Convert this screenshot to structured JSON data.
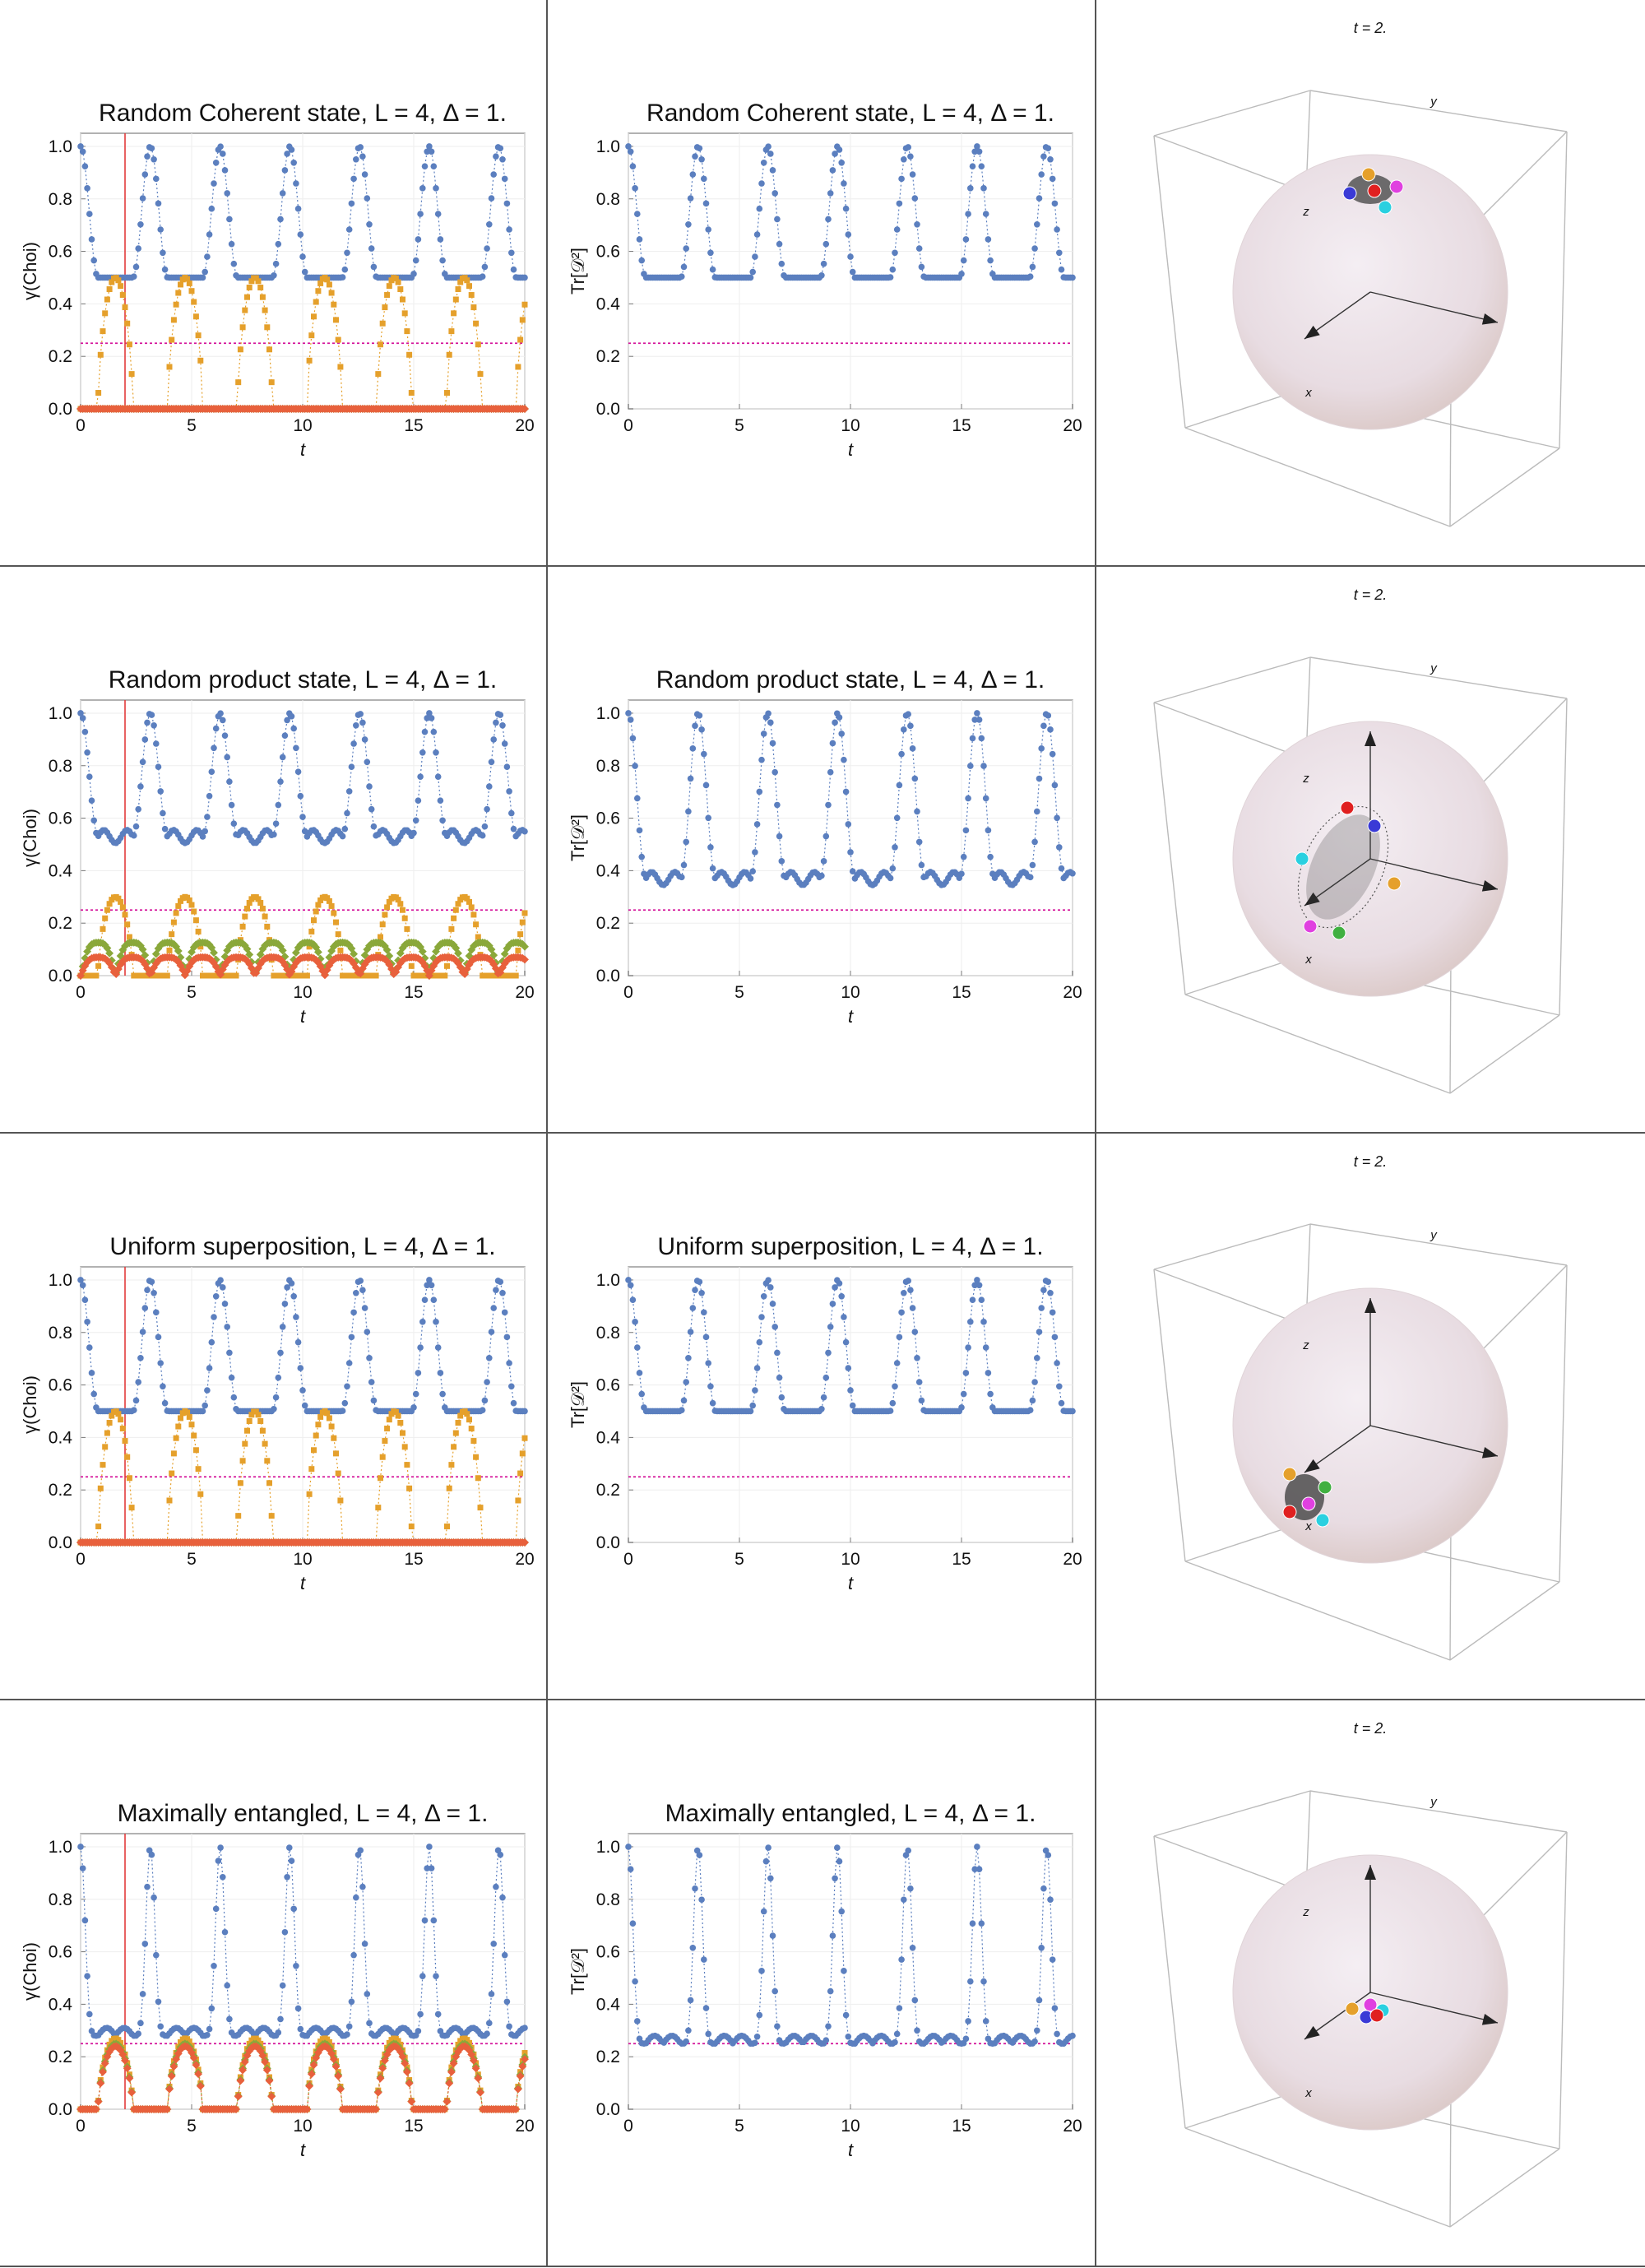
{
  "colors": {
    "blue": "#5b7fbf",
    "orange": "#e5a02b",
    "green": "#8aa83a",
    "red": "#e8603c",
    "magenta": "#d4149b",
    "redline": "#e23b3b"
  },
  "bloch": {
    "time_label": "t = 2.",
    "axis_labels": {
      "x": "x",
      "y": "y",
      "z": "z"
    }
  },
  "rows": [
    {
      "title": "Random Coherent state, L = 4, Δ = 1.",
      "left_ylabel": "γ(Choi)",
      "right_ylabel": "Tr[𝒟²]",
      "xlabel": "t",
      "yticks": [
        "0.0",
        "0.2",
        "0.4",
        "0.6",
        "0.8",
        "1.0"
      ],
      "xticks": [
        "0",
        "5",
        "10",
        "15",
        "20"
      ],
      "bloch_shape": "coherent-top"
    },
    {
      "title": "Random product state, L = 4, Δ = 1.",
      "left_ylabel": "γ(Choi)",
      "right_ylabel": "Tr[𝒟²]",
      "xlabel": "t",
      "yticks": [
        "0.0",
        "0.2",
        "0.4",
        "0.6",
        "0.8",
        "1.0"
      ],
      "xticks": [
        "0",
        "5",
        "10",
        "15",
        "20"
      ],
      "bloch_shape": "product-ellipsoid"
    },
    {
      "title": "Uniform superposition, L = 4, Δ = 1.",
      "left_ylabel": "γ(Choi)",
      "right_ylabel": "Tr[𝒟²]",
      "xlabel": "t",
      "yticks": [
        "0.0",
        "0.2",
        "0.4",
        "0.6",
        "0.8",
        "1.0"
      ],
      "xticks": [
        "0",
        "5",
        "10",
        "15",
        "20"
      ],
      "bloch_shape": "uniform-side"
    },
    {
      "title": "Maximally entangled, L = 4, Δ = 1.",
      "left_ylabel": "γ(Choi)",
      "right_ylabel": "Tr[𝒟²]",
      "xlabel": "t",
      "yticks": [
        "0.0",
        "0.2",
        "0.4",
        "0.6",
        "0.8",
        "1.0"
      ],
      "xticks": [
        "0",
        "5",
        "10",
        "15",
        "20"
      ],
      "bloch_shape": "center"
    }
  ],
  "chart_data": [
    {
      "type": "scatter",
      "title": "Random Coherent state, L = 4, Δ = 1.",
      "xlabel": "t",
      "ylabel": "γ(Choi)",
      "xlim": [
        0,
        20
      ],
      "ylim": [
        0,
        1.05
      ],
      "period": 3.14,
      "series": [
        {
          "color": "#5b7fbf",
          "min": 0.5,
          "max": 1.0,
          "shape": "plateau"
        },
        {
          "color": "#e5a02b",
          "min": 0.0,
          "max": 0.5,
          "shape": "arch"
        },
        {
          "color": "#8aa83a",
          "min": 0.0,
          "max": 0.0,
          "shape": "flat"
        },
        {
          "color": "#e8603c",
          "min": 0.0,
          "max": 0.0,
          "shape": "flat"
        }
      ],
      "hline": 0.25,
      "vline": 2
    },
    {
      "type": "scatter",
      "title": "Random Coherent state, L = 4, Δ = 1.",
      "xlabel": "t",
      "ylabel": "Tr[𝒟²]",
      "xlim": [
        0,
        20
      ],
      "ylim": [
        0,
        1.05
      ],
      "period": 3.14,
      "series": [
        {
          "color": "#5b7fbf",
          "min": 0.5,
          "max": 1.0,
          "shape": "plateau"
        }
      ],
      "hline": 0.25
    },
    {
      "type": "scatter",
      "title": "Random product state, L = 4, Δ = 1.",
      "xlabel": "t",
      "ylabel": "γ(Choi)",
      "xlim": [
        0,
        20
      ],
      "ylim": [
        0,
        1.05
      ],
      "period": 3.14,
      "series": [
        {
          "color": "#5b7fbf",
          "min": 0.53,
          "max": 1.0,
          "shape": "wiggle"
        },
        {
          "color": "#e5a02b",
          "min": 0.0,
          "max": 0.3,
          "shape": "arch"
        },
        {
          "color": "#8aa83a",
          "min": 0.0,
          "max": 0.18,
          "shape": "double"
        },
        {
          "color": "#e8603c",
          "min": 0.0,
          "max": 0.1,
          "shape": "double"
        }
      ],
      "hline": 0.25,
      "vline": 2
    },
    {
      "type": "scatter",
      "title": "Random product state, L = 4, Δ = 1.",
      "xlabel": "t",
      "ylabel": "Tr[𝒟²]",
      "xlim": [
        0,
        20
      ],
      "ylim": [
        0,
        1.05
      ],
      "period": 3.14,
      "series": [
        {
          "color": "#5b7fbf",
          "min": 0.37,
          "max": 1.0,
          "shape": "wiggle"
        }
      ],
      "hline": 0.25
    },
    {
      "type": "scatter",
      "title": "Uniform superposition, L = 4, Δ = 1.",
      "xlabel": "t",
      "ylabel": "γ(Choi)",
      "xlim": [
        0,
        20
      ],
      "ylim": [
        0,
        1.05
      ],
      "period": 3.14,
      "series": [
        {
          "color": "#5b7fbf",
          "min": 0.5,
          "max": 1.0,
          "shape": "plateau"
        },
        {
          "color": "#e5a02b",
          "min": 0.0,
          "max": 0.5,
          "shape": "arch"
        },
        {
          "color": "#8aa83a",
          "min": 0.0,
          "max": 0.0,
          "shape": "flat"
        },
        {
          "color": "#e8603c",
          "min": 0.0,
          "max": 0.0,
          "shape": "flat"
        }
      ],
      "hline": 0.25,
      "vline": 2
    },
    {
      "type": "scatter",
      "title": "Uniform superposition, L = 4, Δ = 1.",
      "xlabel": "t",
      "ylabel": "Tr[𝒟²]",
      "xlim": [
        0,
        20
      ],
      "ylim": [
        0,
        1.05
      ],
      "period": 3.14,
      "series": [
        {
          "color": "#5b7fbf",
          "min": 0.5,
          "max": 1.0,
          "shape": "plateau"
        }
      ],
      "hline": 0.25
    },
    {
      "type": "scatter",
      "title": "Maximally entangled, L = 4, Δ = 1.",
      "xlabel": "t",
      "ylabel": "γ(Choi)",
      "xlim": [
        0,
        20
      ],
      "ylim": [
        0,
        1.05
      ],
      "period": 3.14,
      "series": [
        {
          "color": "#5b7fbf",
          "min": 0.28,
          "max": 1.0,
          "shape": "sharp"
        },
        {
          "color": "#e5a02b",
          "min": 0.0,
          "max": 0.27,
          "shape": "arch"
        },
        {
          "color": "#8aa83a",
          "min": 0.0,
          "max": 0.25,
          "shape": "arch"
        },
        {
          "color": "#e8603c",
          "min": 0.0,
          "max": 0.24,
          "shape": "arch"
        }
      ],
      "hline": 0.25,
      "vline": 2
    },
    {
      "type": "scatter",
      "title": "Maximally entangled, L = 4, Δ = 1.",
      "xlabel": "t",
      "ylabel": "Tr[𝒟²]",
      "xlim": [
        0,
        20
      ],
      "ylim": [
        0,
        1.05
      ],
      "period": 3.14,
      "series": [
        {
          "color": "#5b7fbf",
          "min": 0.25,
          "max": 1.0,
          "shape": "sharp"
        }
      ],
      "hline": 0.25
    }
  ]
}
